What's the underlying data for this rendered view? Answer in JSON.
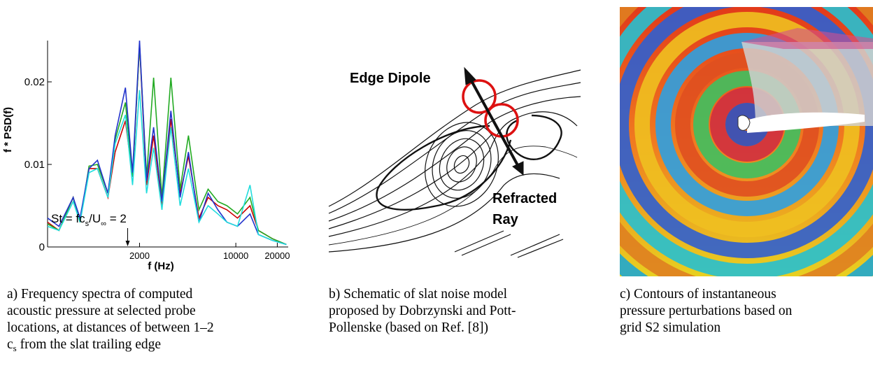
{
  "chart_data": {
    "type": "line",
    "xlabel": "f (Hz)",
    "ylabel": "f * PSD(f)",
    "log_x": true,
    "xlim": [
      430,
      24000
    ],
    "ylim": [
      0,
      0.025
    ],
    "xticks": [
      2000,
      10000,
      20000
    ],
    "yticks": [
      0,
      0.01,
      0.02
    ],
    "x": [
      430,
      520,
      660,
      740,
      860,
      990,
      1180,
      1330,
      1580,
      1780,
      2000,
      2250,
      2530,
      2910,
      3380,
      3940,
      4530,
      5400,
      6290,
      7410,
      8620,
      10280,
      12680,
      14590,
      18420,
      23280
    ],
    "series": [
      {
        "color": "#cc0000",
        "values": [
          0.003,
          0.002,
          0.006,
          0.003,
          0.0095,
          0.0095,
          0.006,
          0.0115,
          0.0153,
          0.0085,
          0.0245,
          0.0075,
          0.0135,
          0.005,
          0.0155,
          0.0065,
          0.011,
          0.0035,
          0.006,
          0.005,
          0.0045,
          0.0035,
          0.005,
          0.002,
          0.001,
          0.0003
        ]
      },
      {
        "color": "#22aa22",
        "values": [
          0.0028,
          0.002,
          0.006,
          0.003,
          0.0098,
          0.01,
          0.0065,
          0.013,
          0.0175,
          0.0085,
          0.0245,
          0.0085,
          0.0205,
          0.006,
          0.0205,
          0.007,
          0.0135,
          0.0045,
          0.007,
          0.0055,
          0.005,
          0.004,
          0.006,
          0.002,
          0.001,
          0.0003
        ]
      },
      {
        "color": "#2233cc",
        "values": [
          0.0035,
          0.0025,
          0.006,
          0.0035,
          0.0095,
          0.0105,
          0.0065,
          0.0135,
          0.0193,
          0.009,
          0.025,
          0.008,
          0.0145,
          0.0055,
          0.0165,
          0.006,
          0.0115,
          0.003,
          0.0065,
          0.0045,
          0.003,
          0.0025,
          0.004,
          0.0015,
          0.0008,
          0.0003
        ]
      },
      {
        "color": "#22dddd",
        "values": [
          0.0025,
          0.002,
          0.0055,
          0.003,
          0.009,
          0.0095,
          0.006,
          0.0125,
          0.016,
          0.0075,
          0.019,
          0.0065,
          0.012,
          0.0045,
          0.0145,
          0.005,
          0.0095,
          0.003,
          0.005,
          0.004,
          0.003,
          0.0025,
          0.0075,
          0.0015,
          0.0008,
          0.0003
        ]
      }
    ],
    "annotation": {
      "parts": [
        "St = fc",
        "s",
        "/U",
        "∞",
        " = 2"
      ],
      "x": 1640
    }
  },
  "diagram": {
    "labels": [
      "Edge Dipole",
      "Refracted",
      "Ray"
    ]
  },
  "captions": [
    [
      "a) Frequency spectra of computed",
      "acoustic pressure at selected probe",
      "locations, at distances of between 1–2",
      [
        "c",
        "s",
        " from the slat trailing edge"
      ]
    ],
    [
      "b) Schematic of slat noise model",
      "proposed by Dobrzynski and Pott-",
      "Pollenske (based on Ref. [8])"
    ],
    [
      "c) Contours of instantaneous",
      "pressure perturbations based on",
      "grid S2 simulation"
    ]
  ]
}
